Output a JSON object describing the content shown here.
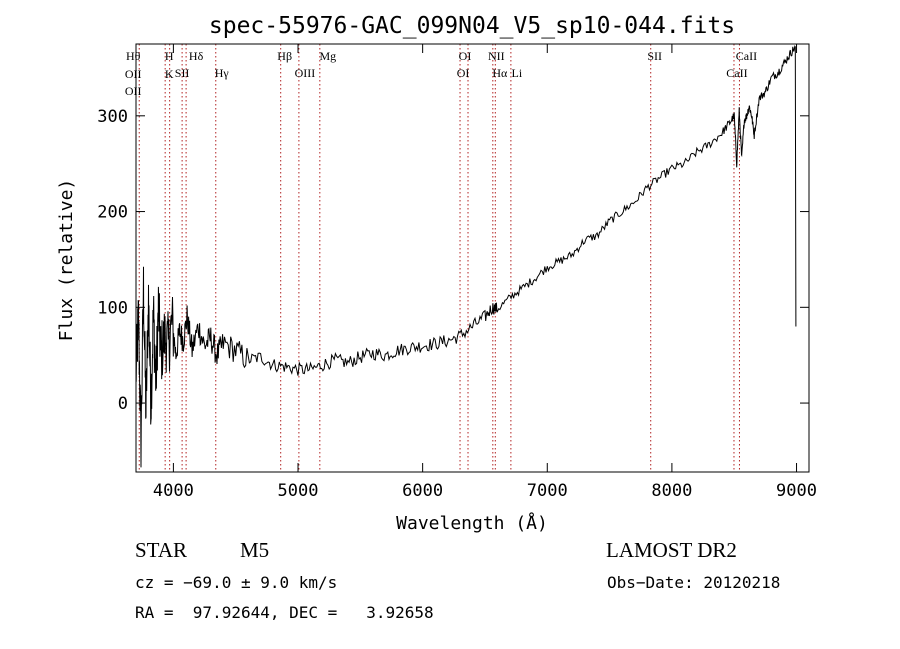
{
  "chart_data": {
    "type": "line",
    "title": "spec-55976-GAC_099N04_V5_sp10-044.fits",
    "xlabel": "Wavelength (Å)",
    "ylabel": "Flux (relative)",
    "xlim": [
      3700,
      9100
    ],
    "ylim": [
      -72,
      375
    ],
    "x_ticks": [
      4000,
      5000,
      6000,
      7000,
      8000,
      9000
    ],
    "y_ticks": [
      0,
      100,
      200,
      300
    ],
    "grid": false,
    "line_color": "#000000",
    "marker_color": "#b22222",
    "series": [
      {
        "x": [
          3700,
          3720,
          3740,
          3760,
          3780,
          3800,
          3820,
          3840,
          3860,
          3880,
          3900,
          3930,
          3960,
          3990,
          4020,
          4050,
          4080,
          4110,
          4150,
          4200,
          4250,
          4300,
          4350,
          4400,
          4500,
          4600,
          4700,
          4800,
          4900,
          5000,
          5100,
          5200,
          5300,
          5400,
          5500,
          5600,
          5700,
          5800,
          5900,
          6000,
          6100,
          6200,
          6300,
          6400,
          6500,
          6560,
          6600,
          6700,
          6800,
          6900,
          7000,
          7100,
          7200,
          7300,
          7400,
          7500,
          7600,
          7700,
          7800,
          7900,
          8000,
          8100,
          8200,
          8300,
          8400,
          8460,
          8500,
          8520,
          8540,
          8560,
          8580,
          8600,
          8620,
          8640,
          8660,
          8700,
          8750,
          8800,
          8850,
          8900,
          8950,
          8990
        ],
        "y": [
          30,
          90,
          -40,
          120,
          -10,
          110,
          0,
          95,
          20,
          100,
          50,
          70,
          60,
          85,
          50,
          75,
          65,
          90,
          55,
          80,
          60,
          68,
          50,
          62,
          55,
          45,
          48,
          40,
          38,
          35,
          35,
          40,
          45,
          42,
          48,
          52,
          50,
          55,
          58,
          60,
          62,
          65,
          70,
          80,
          90,
          100,
          98,
          110,
          120,
          130,
          142,
          148,
          155,
          170,
          175,
          190,
          200,
          210,
          225,
          235,
          245,
          250,
          262,
          270,
          282,
          292,
          300,
          250,
          305,
          255,
          295,
          300,
          310,
          300,
          280,
          318,
          325,
          340,
          345,
          355,
          365,
          372
        ]
      }
    ],
    "line_markers": [
      {
        "x": 3726,
        "labels": [
          "Hθ",
          "OII",
          "OII"
        ]
      },
      {
        "x": 3934,
        "labels": [
          "H",
          "K"
        ]
      },
      {
        "x": 3970,
        "labels": []
      },
      {
        "x": 4070,
        "labels": [
          "SII"
        ]
      },
      {
        "x": 4102,
        "labels": [
          "Hδ"
        ]
      },
      {
        "x": 4340,
        "labels": [
          "Hγ"
        ]
      },
      {
        "x": 4861,
        "labels": [
          "Hβ"
        ]
      },
      {
        "x": 5007,
        "labels": [
          "OIII"
        ]
      },
      {
        "x": 5175,
        "labels": [
          "Mg"
        ]
      },
      {
        "x": 6300,
        "labels": [
          "OI"
        ]
      },
      {
        "x": 6364,
        "labels": [
          "OI"
        ]
      },
      {
        "x": 6563,
        "labels": [
          "Hα"
        ]
      },
      {
        "x": 6583,
        "labels": [
          "NII"
        ]
      },
      {
        "x": 6708,
        "labels": [
          "Li"
        ]
      },
      {
        "x": 7830,
        "labels": [
          "SII"
        ]
      },
      {
        "x": 8498,
        "labels": [
          "CaII"
        ]
      },
      {
        "x": 8542,
        "labels": [
          "CaII"
        ]
      }
    ]
  },
  "info": {
    "object_type": "STAR",
    "subclass": "M5",
    "survey": "LAMOST DR2",
    "cz": "cz = −69.0 ± 9.0 km/s",
    "obs_date": "Obs−Date: 20120218",
    "coords": "RA =  97.92644, DEC =   3.92658"
  }
}
